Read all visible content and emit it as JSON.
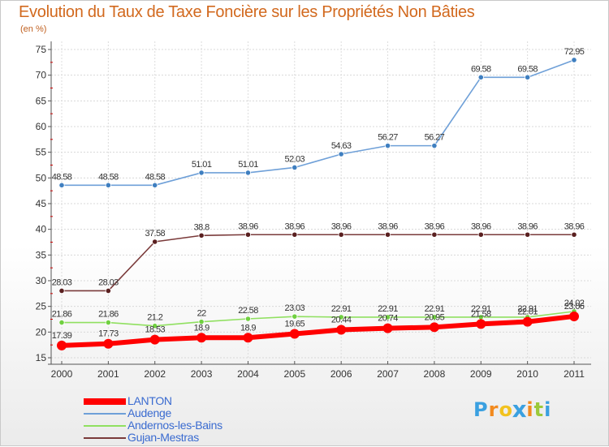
{
  "title": "Evolution du Taux de Taxe Foncière sur les Propriétés Non Bâties",
  "subtitle": "(en %)",
  "logo": {
    "letters": [
      "P",
      "r",
      "o",
      "x",
      "i",
      "t",
      "i"
    ],
    "colors": [
      "#3aa0e0",
      "#f28a1e",
      "#f2c21e",
      "#3aa0e0",
      "#f28a1e",
      "#9cc93a",
      "#3aa0e0"
    ]
  },
  "chart_data": {
    "type": "line",
    "title": "Evolution du Taux de Taxe Foncière sur les Propriétés Non Bâties",
    "ylabel": "(en %)",
    "xlabel": "",
    "ylim": [
      15,
      75
    ],
    "yticks": [
      15,
      20,
      25,
      30,
      35,
      40,
      45,
      50,
      55,
      60,
      65,
      70,
      75
    ],
    "x": [
      "2000",
      "2001",
      "2002",
      "2003",
      "2004",
      "2005",
      "2006",
      "2007",
      "2008",
      "2009",
      "2010",
      "2011"
    ],
    "grid": true,
    "series": [
      {
        "name": "Audenge",
        "color": "#6fa0d8",
        "marker": "#3f7fc0",
        "values": [
          48.58,
          48.58,
          48.58,
          51.01,
          51.01,
          52.03,
          54.63,
          56.27,
          56.27,
          69.58,
          69.58,
          72.95
        ],
        "labels": [
          "48.58",
          "48.58",
          "48.58",
          "51.01",
          "51.01",
          "52.03",
          "54.63",
          "56.27",
          "56.27",
          "69.58",
          "69.58",
          "72.95"
        ]
      },
      {
        "name": "Gujan-Mestras",
        "color": "#7a3a3a",
        "marker": "#5a2020",
        "values": [
          28.03,
          28.03,
          37.58,
          38.8,
          38.96,
          38.96,
          38.96,
          38.96,
          38.96,
          38.96,
          38.96,
          38.96
        ],
        "labels": [
          "28.03",
          "28.03",
          "37.58",
          "38.8",
          "38.96",
          "38.96",
          "38.96",
          "38.96",
          "38.96",
          "38.96",
          "38.96",
          "38.96"
        ]
      },
      {
        "name": "Andernos-les-Bains",
        "color": "#90e060",
        "marker": "#70d040",
        "values": [
          21.86,
          21.86,
          21.2,
          22,
          22.58,
          23.03,
          22.91,
          22.91,
          22.91,
          22.91,
          22.91,
          24.02
        ],
        "labels": [
          "21.86",
          "21.86",
          "21.2",
          "22",
          "22.58",
          "23.03",
          "22.91",
          "22.91",
          "22.91",
          "22.91",
          "22.91",
          "24.02"
        ]
      },
      {
        "name": "LANTON",
        "color": "#ff0000",
        "marker": "#ff0000",
        "values": [
          17.39,
          17.73,
          18.53,
          18.9,
          18.9,
          19.65,
          20.44,
          20.74,
          20.95,
          21.58,
          22.01,
          23.06
        ],
        "labels": [
          "17.39",
          "17.73",
          "18.53",
          "18.9",
          "18.9",
          "19.65",
          "20.44",
          "20.74",
          "20.95",
          "21.58",
          "22.01",
          "23.06"
        ]
      }
    ],
    "legend": {
      "position": "bottom-left",
      "order": [
        "LANTON",
        "Audenge",
        "Andernos-les-Bains",
        "Gujan-Mestras"
      ]
    }
  }
}
